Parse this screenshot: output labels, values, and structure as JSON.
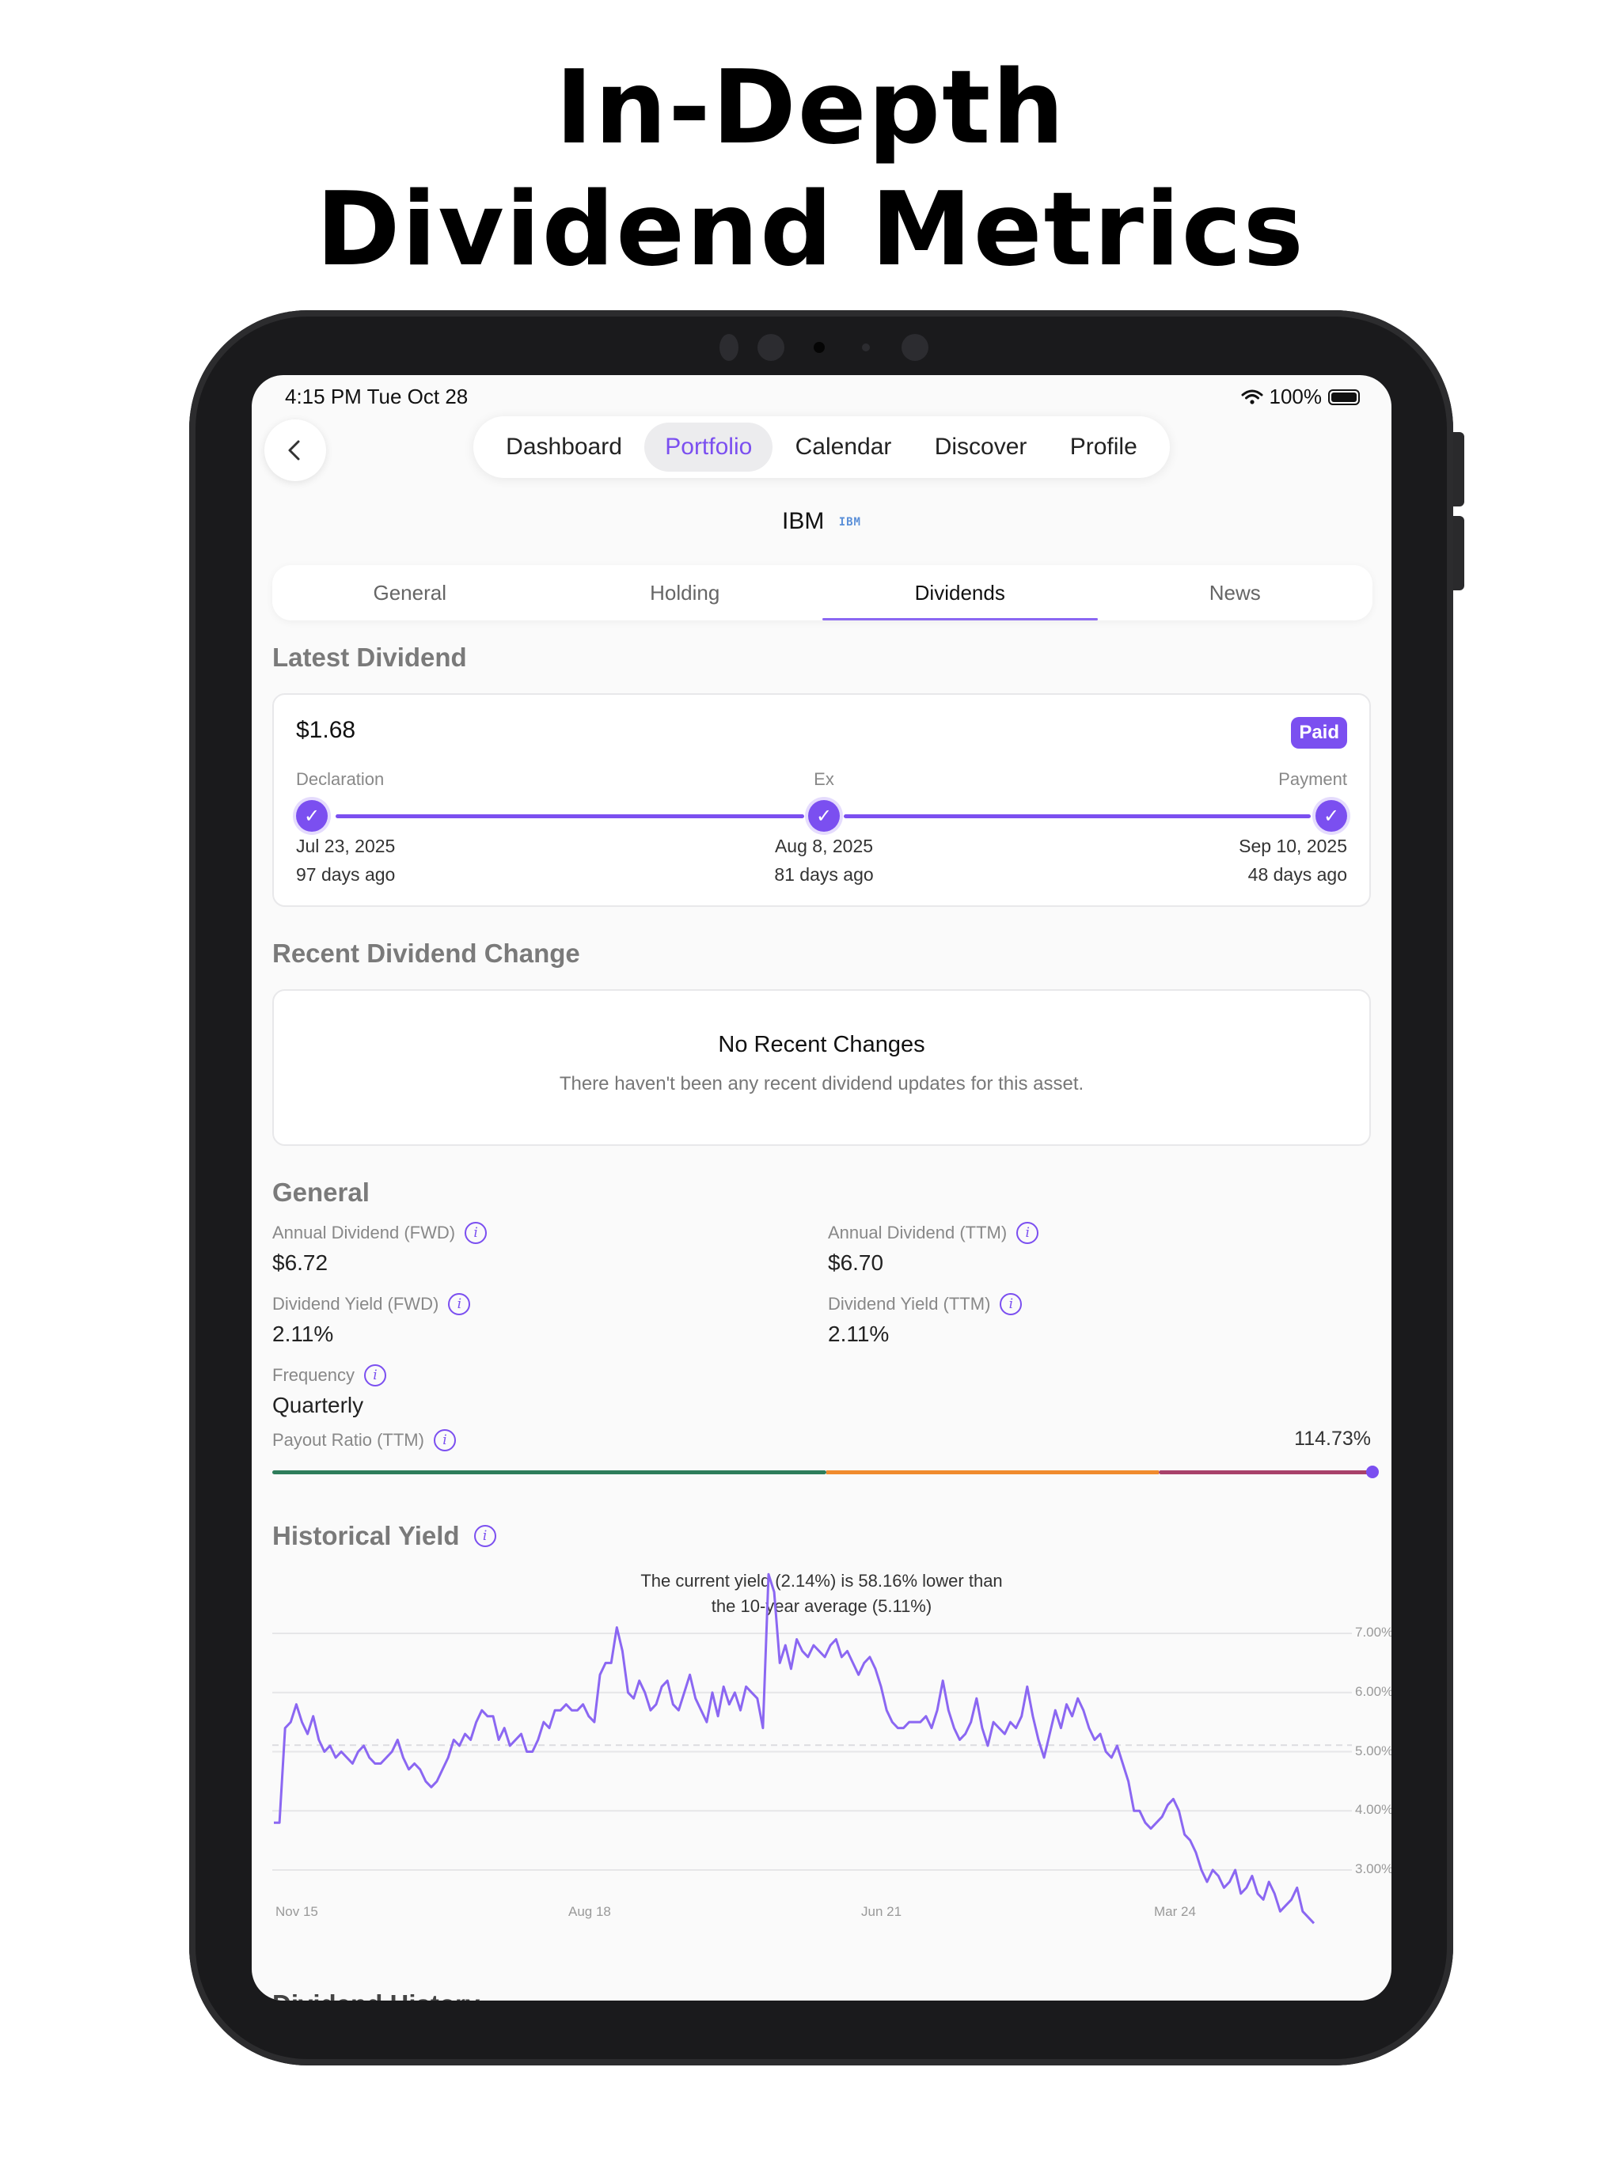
{
  "headline": {
    "line1": "In-Depth",
    "line2": "Dividend Metrics"
  },
  "status_bar": {
    "time": "4:15 PM   Tue Oct 28",
    "battery": "100%",
    "wifi_icon": "wifi-icon"
  },
  "nav": {
    "back_icon": "chevron-left-icon",
    "items": [
      "Dashboard",
      "Portfolio",
      "Calendar",
      "Discover",
      "Profile"
    ],
    "active": "Portfolio"
  },
  "asset": {
    "ticker": "IBM",
    "logo": "IBM"
  },
  "tabs": {
    "items": [
      "General",
      "Holding",
      "Dividends",
      "News"
    ],
    "active": "Dividends"
  },
  "latest_dividend": {
    "title": "Latest Dividend",
    "amount": "$1.68",
    "status": "Paid",
    "timeline": [
      {
        "label": "Declaration",
        "date": "Jul 23, 2025",
        "ago": "97 days ago"
      },
      {
        "label": "Ex",
        "date": "Aug 8, 2025",
        "ago": "81 days ago"
      },
      {
        "label": "Payment",
        "date": "Sep 10, 2025",
        "ago": "48 days ago"
      }
    ],
    "check_glyph": "✓"
  },
  "recent_change": {
    "title": "Recent Dividend Change",
    "heading": "No Recent Changes",
    "text": "There haven't been any recent dividend updates for this asset."
  },
  "general": {
    "title": "General",
    "annual_fwd": {
      "label": "Annual Dividend (FWD)",
      "value": "$6.72"
    },
    "annual_ttm": {
      "label": "Annual Dividend (TTM)",
      "value": "$6.70"
    },
    "yield_fwd": {
      "label": "Dividend Yield (FWD)",
      "value": "2.11%"
    },
    "yield_ttm": {
      "label": "Dividend Yield (TTM)",
      "value": "2.11%"
    },
    "frequency": {
      "label": "Frequency",
      "value": "Quarterly"
    },
    "payout": {
      "label": "Payout Ratio (TTM)",
      "value": "114.73%",
      "level": 1.0
    },
    "info_glyph": "i",
    "payout_colors": [
      "#2e7d5b",
      "#f08b2e",
      "#a8416a"
    ]
  },
  "historical_yield": {
    "title": "Historical Yield",
    "caption_line1": "The current yield (2.14%) is 58.16% lower than",
    "caption_line2": "the 10-year average (5.11%)"
  },
  "chart_data": {
    "type": "line",
    "title": "Historical Yield",
    "x_ticks": [
      "Nov 15",
      "Aug 18",
      "Jun 21",
      "Mar 24"
    ],
    "y_ticks": [
      "3.00%",
      "4.00%",
      "5.00%",
      "6.00%",
      "7.00%"
    ],
    "ylim": [
      2.0,
      7.5
    ],
    "average": 5.11,
    "grid": true,
    "line_color": "#8b67f2",
    "series": [
      {
        "values": [
          3.8,
          3.8,
          5.4,
          5.5,
          5.8,
          5.5,
          5.3,
          5.6,
          5.2,
          5.0,
          5.1,
          4.9,
          5.0,
          4.9,
          4.8,
          5.0,
          5.1,
          4.9,
          4.8,
          4.8,
          4.9,
          5.0,
          5.2,
          4.9,
          4.7,
          4.8,
          4.7,
          4.5,
          4.4,
          4.5,
          4.7,
          4.9,
          5.2,
          5.1,
          5.3,
          5.2,
          5.5,
          5.7,
          5.6,
          5.6,
          5.2,
          5.4,
          5.1,
          5.2,
          5.3,
          5.0,
          5.0,
          5.2,
          5.5,
          5.4,
          5.7,
          5.7,
          5.8,
          5.7,
          5.7,
          5.8,
          5.6,
          5.5,
          6.3,
          6.5,
          6.5,
          7.1,
          6.7,
          6.0,
          5.9,
          6.2,
          6.0,
          5.7,
          5.8,
          6.1,
          6.2,
          5.8,
          5.7,
          6.0,
          6.3,
          5.9,
          5.7,
          5.5,
          6.0,
          5.6,
          6.1,
          5.8,
          6.0,
          5.7,
          6.1,
          6.0,
          5.9,
          5.4,
          8.0,
          7.7,
          6.5,
          6.8,
          6.4,
          6.9,
          6.7,
          6.6,
          6.8,
          6.7,
          6.6,
          6.8,
          6.9,
          6.6,
          6.7,
          6.5,
          6.3,
          6.5,
          6.6,
          6.4,
          6.1,
          5.7,
          5.5,
          5.4,
          5.4,
          5.5,
          5.5,
          5.5,
          5.6,
          5.4,
          5.7,
          6.2,
          5.7,
          5.4,
          5.2,
          5.3,
          5.5,
          5.9,
          5.4,
          5.1,
          5.5,
          5.4,
          5.3,
          5.5,
          5.4,
          5.6,
          6.1,
          5.6,
          5.2,
          4.9,
          5.3,
          5.7,
          5.4,
          5.8,
          5.6,
          5.9,
          5.7,
          5.4,
          5.2,
          5.3,
          5.0,
          4.9,
          5.1,
          4.8,
          4.5,
          4.0,
          4.0,
          3.8,
          3.7,
          3.8,
          3.9,
          4.1,
          4.2,
          4.0,
          3.6,
          3.5,
          3.3,
          3.0,
          2.8,
          3.0,
          2.9,
          2.7,
          2.8,
          3.0,
          2.6,
          2.7,
          2.9,
          2.6,
          2.5,
          2.8,
          2.6,
          2.3,
          2.4,
          2.5,
          2.7,
          2.3,
          2.2,
          2.1
        ]
      }
    ]
  },
  "dividend_history": {
    "title": "Dividend History"
  }
}
